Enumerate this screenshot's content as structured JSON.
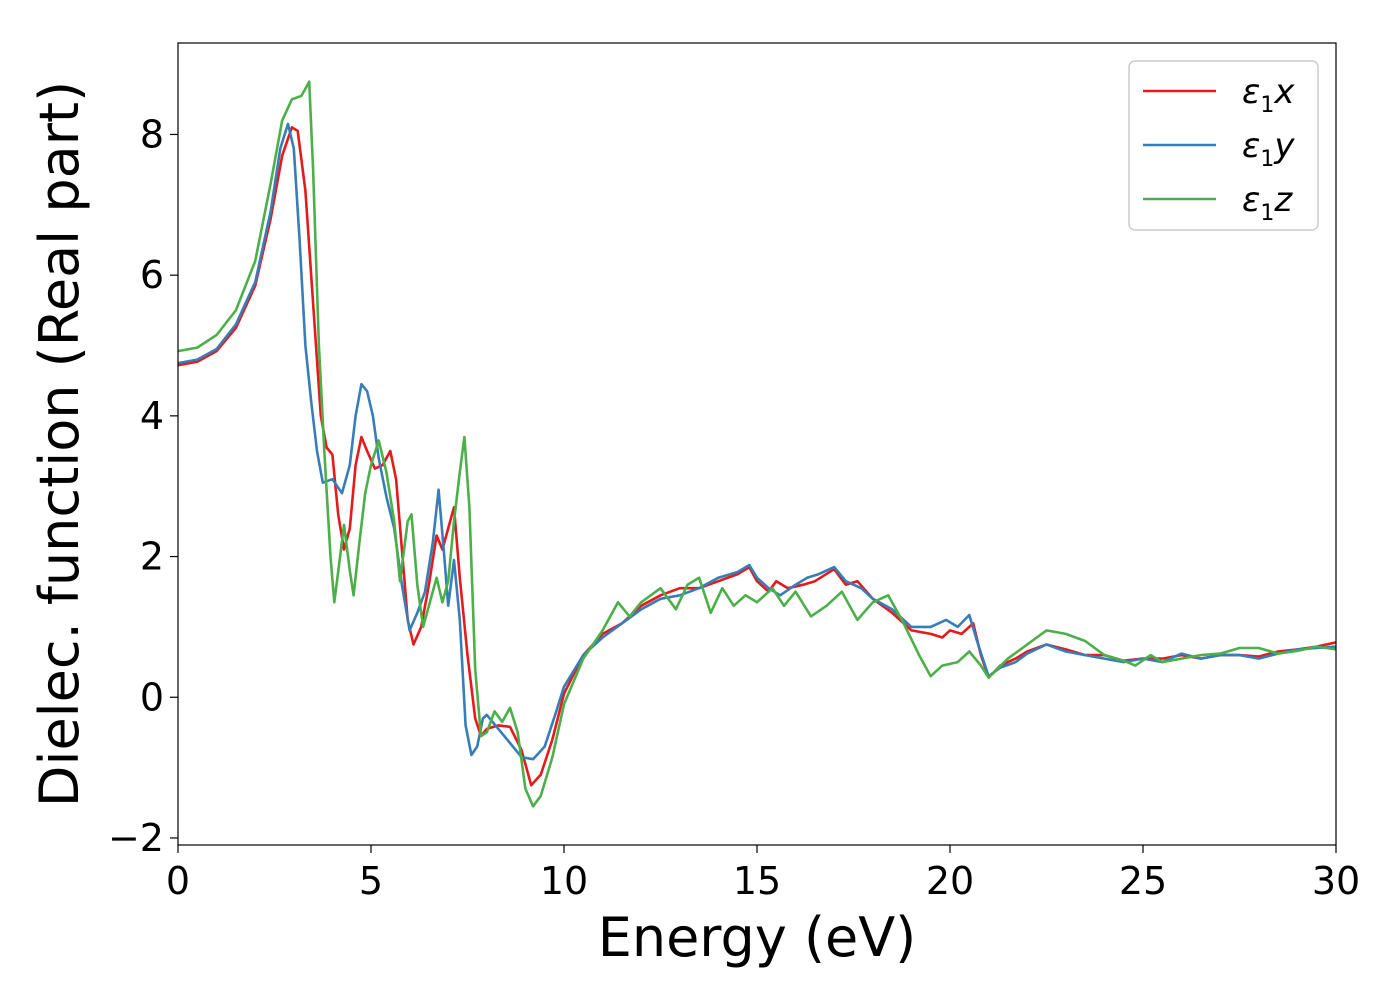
{
  "chart_data": {
    "type": "line",
    "xlabel": "Energy (eV)",
    "ylabel": "Dielec. function (Real part)",
    "xlim": [
      0,
      30
    ],
    "ylim": [
      -2.1,
      9.3
    ],
    "xticks": [
      0,
      5,
      10,
      15,
      20,
      25,
      30
    ],
    "yticks": [
      -2,
      0,
      2,
      4,
      6,
      8
    ],
    "grid": false,
    "legend": {
      "placement": "top-right"
    },
    "series": [
      {
        "name": "ε1x",
        "symbol": "ε",
        "sub": "1",
        "axis": "x",
        "color": "#e41a1c",
        "points": [
          [
            0,
            4.72
          ],
          [
            0.5,
            4.77
          ],
          [
            1.0,
            4.92
          ],
          [
            1.5,
            5.25
          ],
          [
            2.0,
            5.85
          ],
          [
            2.4,
            6.8
          ],
          [
            2.7,
            7.7
          ],
          [
            2.95,
            8.1
          ],
          [
            3.1,
            8.05
          ],
          [
            3.3,
            7.2
          ],
          [
            3.5,
            5.6
          ],
          [
            3.7,
            4.0
          ],
          [
            3.85,
            3.55
          ],
          [
            4.0,
            3.45
          ],
          [
            4.15,
            2.6
          ],
          [
            4.3,
            2.1
          ],
          [
            4.45,
            2.4
          ],
          [
            4.6,
            3.3
          ],
          [
            4.75,
            3.7
          ],
          [
            4.9,
            3.5
          ],
          [
            5.1,
            3.25
          ],
          [
            5.3,
            3.3
          ],
          [
            5.5,
            3.5
          ],
          [
            5.65,
            3.1
          ],
          [
            5.8,
            2.1
          ],
          [
            5.95,
            1.1
          ],
          [
            6.1,
            0.75
          ],
          [
            6.3,
            1.0
          ],
          [
            6.5,
            1.6
          ],
          [
            6.7,
            2.3
          ],
          [
            6.85,
            2.1
          ],
          [
            7.0,
            2.4
          ],
          [
            7.15,
            2.7
          ],
          [
            7.3,
            1.7
          ],
          [
            7.5,
            0.6
          ],
          [
            7.7,
            -0.3
          ],
          [
            7.85,
            -0.55
          ],
          [
            8.0,
            -0.45
          ],
          [
            8.3,
            -0.4
          ],
          [
            8.6,
            -0.42
          ],
          [
            8.9,
            -0.75
          ],
          [
            9.15,
            -1.25
          ],
          [
            9.4,
            -1.1
          ],
          [
            9.7,
            -0.6
          ],
          [
            10.0,
            0.05
          ],
          [
            10.5,
            0.6
          ],
          [
            11.0,
            0.9
          ],
          [
            11.5,
            1.05
          ],
          [
            12.0,
            1.3
          ],
          [
            12.5,
            1.45
          ],
          [
            13.0,
            1.55
          ],
          [
            13.5,
            1.55
          ],
          [
            14.0,
            1.65
          ],
          [
            14.5,
            1.75
          ],
          [
            14.8,
            1.85
          ],
          [
            15.0,
            1.65
          ],
          [
            15.3,
            1.5
          ],
          [
            15.5,
            1.65
          ],
          [
            15.8,
            1.55
          ],
          [
            16.2,
            1.6
          ],
          [
            16.5,
            1.65
          ],
          [
            17.0,
            1.82
          ],
          [
            17.3,
            1.6
          ],
          [
            17.6,
            1.65
          ],
          [
            18.0,
            1.4
          ],
          [
            18.5,
            1.2
          ],
          [
            19.0,
            0.95
          ],
          [
            19.5,
            0.9
          ],
          [
            19.8,
            0.85
          ],
          [
            20.0,
            0.95
          ],
          [
            20.3,
            0.9
          ],
          [
            20.6,
            1.05
          ],
          [
            20.8,
            0.6
          ],
          [
            21.0,
            0.28
          ],
          [
            21.3,
            0.45
          ],
          [
            21.7,
            0.55
          ],
          [
            22.0,
            0.65
          ],
          [
            22.5,
            0.75
          ],
          [
            23.0,
            0.68
          ],
          [
            23.5,
            0.6
          ],
          [
            24.0,
            0.6
          ],
          [
            24.5,
            0.52
          ],
          [
            25.0,
            0.55
          ],
          [
            25.5,
            0.55
          ],
          [
            26.0,
            0.6
          ],
          [
            26.5,
            0.55
          ],
          [
            27.0,
            0.6
          ],
          [
            27.5,
            0.6
          ],
          [
            28.0,
            0.58
          ],
          [
            28.5,
            0.65
          ],
          [
            29.0,
            0.68
          ],
          [
            29.5,
            0.72
          ],
          [
            30.0,
            0.78
          ]
        ]
      },
      {
        "name": "ε1y",
        "symbol": "ε",
        "sub": "1",
        "axis": "y",
        "color": "#377eb8",
        "points": [
          [
            0,
            4.75
          ],
          [
            0.5,
            4.8
          ],
          [
            1.0,
            4.95
          ],
          [
            1.5,
            5.3
          ],
          [
            2.0,
            5.9
          ],
          [
            2.4,
            6.9
          ],
          [
            2.65,
            7.8
          ],
          [
            2.85,
            8.15
          ],
          [
            3.0,
            7.8
          ],
          [
            3.15,
            6.5
          ],
          [
            3.3,
            5.0
          ],
          [
            3.45,
            4.2
          ],
          [
            3.6,
            3.5
          ],
          [
            3.75,
            3.05
          ],
          [
            4.0,
            3.1
          ],
          [
            4.25,
            2.9
          ],
          [
            4.45,
            3.3
          ],
          [
            4.6,
            4.0
          ],
          [
            4.75,
            4.45
          ],
          [
            4.9,
            4.35
          ],
          [
            5.05,
            4.0
          ],
          [
            5.2,
            3.4
          ],
          [
            5.4,
            2.85
          ],
          [
            5.6,
            2.4
          ],
          [
            5.8,
            1.6
          ],
          [
            6.0,
            0.95
          ],
          [
            6.2,
            1.2
          ],
          [
            6.4,
            1.5
          ],
          [
            6.6,
            2.2
          ],
          [
            6.75,
            2.95
          ],
          [
            6.9,
            2.0
          ],
          [
            7.0,
            1.3
          ],
          [
            7.15,
            1.95
          ],
          [
            7.3,
            1.1
          ],
          [
            7.45,
            -0.4
          ],
          [
            7.6,
            -0.82
          ],
          [
            7.75,
            -0.7
          ],
          [
            7.9,
            -0.3
          ],
          [
            8.0,
            -0.25
          ],
          [
            8.3,
            -0.45
          ],
          [
            8.6,
            -0.65
          ],
          [
            8.9,
            -0.85
          ],
          [
            9.2,
            -0.88
          ],
          [
            9.5,
            -0.7
          ],
          [
            9.8,
            -0.2
          ],
          [
            10.0,
            0.15
          ],
          [
            10.5,
            0.6
          ],
          [
            11.0,
            0.85
          ],
          [
            11.5,
            1.05
          ],
          [
            12.0,
            1.25
          ],
          [
            12.5,
            1.4
          ],
          [
            13.0,
            1.45
          ],
          [
            13.5,
            1.55
          ],
          [
            14.0,
            1.7
          ],
          [
            14.5,
            1.78
          ],
          [
            14.8,
            1.88
          ],
          [
            15.0,
            1.7
          ],
          [
            15.3,
            1.55
          ],
          [
            15.6,
            1.45
          ],
          [
            16.0,
            1.6
          ],
          [
            16.3,
            1.7
          ],
          [
            16.6,
            1.75
          ],
          [
            17.0,
            1.85
          ],
          [
            17.3,
            1.65
          ],
          [
            17.7,
            1.55
          ],
          [
            18.0,
            1.4
          ],
          [
            18.5,
            1.25
          ],
          [
            19.0,
            1.0
          ],
          [
            19.5,
            1.0
          ],
          [
            19.9,
            1.1
          ],
          [
            20.2,
            1.0
          ],
          [
            20.5,
            1.17
          ],
          [
            20.7,
            0.8
          ],
          [
            21.0,
            0.3
          ],
          [
            21.3,
            0.42
          ],
          [
            21.7,
            0.5
          ],
          [
            22.0,
            0.62
          ],
          [
            22.5,
            0.75
          ],
          [
            23.0,
            0.65
          ],
          [
            23.5,
            0.6
          ],
          [
            24.0,
            0.55
          ],
          [
            24.5,
            0.5
          ],
          [
            25.0,
            0.55
          ],
          [
            25.5,
            0.5
          ],
          [
            26.0,
            0.62
          ],
          [
            26.5,
            0.55
          ],
          [
            27.0,
            0.6
          ],
          [
            27.5,
            0.6
          ],
          [
            28.0,
            0.55
          ],
          [
            28.5,
            0.62
          ],
          [
            29.0,
            0.68
          ],
          [
            29.5,
            0.7
          ],
          [
            30.0,
            0.72
          ]
        ]
      },
      {
        "name": "ε1z",
        "symbol": "ε",
        "sub": "1",
        "axis": "z",
        "color": "#4daf4a",
        "points": [
          [
            0,
            4.92
          ],
          [
            0.5,
            4.97
          ],
          [
            1.0,
            5.15
          ],
          [
            1.5,
            5.5
          ],
          [
            2.0,
            6.2
          ],
          [
            2.4,
            7.3
          ],
          [
            2.7,
            8.2
          ],
          [
            2.95,
            8.5
          ],
          [
            3.2,
            8.55
          ],
          [
            3.4,
            8.75
          ],
          [
            3.5,
            7.5
          ],
          [
            3.65,
            5.0
          ],
          [
            3.8,
            3.4
          ],
          [
            3.95,
            2.0
          ],
          [
            4.05,
            1.35
          ],
          [
            4.2,
            2.0
          ],
          [
            4.3,
            2.45
          ],
          [
            4.45,
            1.8
          ],
          [
            4.55,
            1.45
          ],
          [
            4.7,
            2.2
          ],
          [
            4.85,
            2.9
          ],
          [
            5.0,
            3.3
          ],
          [
            5.2,
            3.65
          ],
          [
            5.4,
            3.2
          ],
          [
            5.6,
            2.5
          ],
          [
            5.75,
            1.65
          ],
          [
            5.95,
            2.5
          ],
          [
            6.05,
            2.6
          ],
          [
            6.2,
            1.6
          ],
          [
            6.35,
            1.0
          ],
          [
            6.5,
            1.3
          ],
          [
            6.7,
            1.7
          ],
          [
            6.85,
            1.35
          ],
          [
            7.0,
            1.65
          ],
          [
            7.15,
            2.5
          ],
          [
            7.3,
            3.2
          ],
          [
            7.42,
            3.7
          ],
          [
            7.55,
            2.7
          ],
          [
            7.7,
            0.4
          ],
          [
            7.85,
            -0.55
          ],
          [
            8.0,
            -0.5
          ],
          [
            8.2,
            -0.2
          ],
          [
            8.4,
            -0.35
          ],
          [
            8.6,
            -0.15
          ],
          [
            8.8,
            -0.5
          ],
          [
            9.0,
            -1.3
          ],
          [
            9.2,
            -1.55
          ],
          [
            9.4,
            -1.4
          ],
          [
            9.7,
            -0.85
          ],
          [
            10.0,
            -0.1
          ],
          [
            10.5,
            0.55
          ],
          [
            11.0,
            0.95
          ],
          [
            11.4,
            1.35
          ],
          [
            11.7,
            1.15
          ],
          [
            12.0,
            1.35
          ],
          [
            12.5,
            1.55
          ],
          [
            12.9,
            1.25
          ],
          [
            13.2,
            1.6
          ],
          [
            13.5,
            1.7
          ],
          [
            13.8,
            1.2
          ],
          [
            14.1,
            1.55
          ],
          [
            14.4,
            1.3
          ],
          [
            14.7,
            1.45
          ],
          [
            15.0,
            1.35
          ],
          [
            15.4,
            1.55
          ],
          [
            15.7,
            1.3
          ],
          [
            16.0,
            1.5
          ],
          [
            16.4,
            1.15
          ],
          [
            16.8,
            1.3
          ],
          [
            17.2,
            1.5
          ],
          [
            17.6,
            1.1
          ],
          [
            18.0,
            1.35
          ],
          [
            18.4,
            1.45
          ],
          [
            18.8,
            1.05
          ],
          [
            19.2,
            0.6
          ],
          [
            19.5,
            0.3
          ],
          [
            19.8,
            0.45
          ],
          [
            20.2,
            0.5
          ],
          [
            20.5,
            0.65
          ],
          [
            20.8,
            0.45
          ],
          [
            21.0,
            0.28
          ],
          [
            21.5,
            0.55
          ],
          [
            22.0,
            0.75
          ],
          [
            22.5,
            0.95
          ],
          [
            23.0,
            0.9
          ],
          [
            23.5,
            0.8
          ],
          [
            24.0,
            0.6
          ],
          [
            24.5,
            0.52
          ],
          [
            24.8,
            0.45
          ],
          [
            25.2,
            0.6
          ],
          [
            25.5,
            0.5
          ],
          [
            26.0,
            0.55
          ],
          [
            26.5,
            0.6
          ],
          [
            27.0,
            0.62
          ],
          [
            27.5,
            0.7
          ],
          [
            28.0,
            0.7
          ],
          [
            28.5,
            0.62
          ],
          [
            29.0,
            0.66
          ],
          [
            29.5,
            0.72
          ],
          [
            30.0,
            0.68
          ]
        ]
      }
    ]
  }
}
